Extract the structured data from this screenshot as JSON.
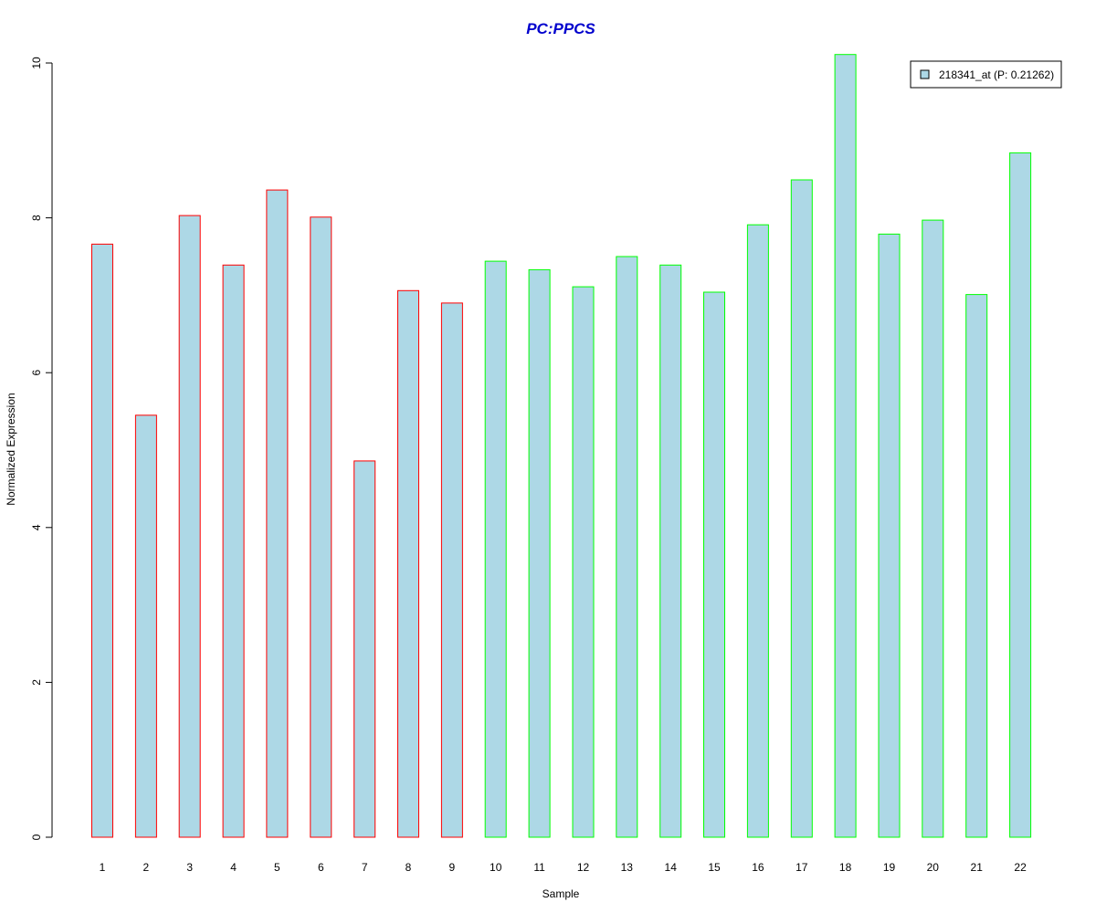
{
  "chart_data": {
    "type": "bar",
    "title": "PC:PPCS",
    "title_color": "#0000cd",
    "xlabel": "Sample",
    "ylabel": "Normalized Expression",
    "ylim": [
      0,
      10
    ],
    "y_ticks": [
      "0",
      "2",
      "4",
      "6",
      "8",
      "10"
    ],
    "categories": [
      "1",
      "2",
      "3",
      "4",
      "5",
      "6",
      "7",
      "8",
      "9",
      "10",
      "11",
      "12",
      "13",
      "14",
      "15",
      "16",
      "17",
      "18",
      "19",
      "20",
      "21",
      "22"
    ],
    "values": [
      7.66,
      5.45,
      8.03,
      7.39,
      8.36,
      8.01,
      4.86,
      7.06,
      6.9,
      7.44,
      7.33,
      7.11,
      7.5,
      7.39,
      7.04,
      7.91,
      8.49,
      10.11,
      7.79,
      7.97,
      7.01,
      8.84
    ],
    "groups": [
      "red",
      "red",
      "red",
      "red",
      "red",
      "red",
      "red",
      "red",
      "red",
      "green",
      "green",
      "green",
      "green",
      "green",
      "green",
      "green",
      "green",
      "green",
      "green",
      "green",
      "green",
      "green"
    ],
    "fill_color": "#add8e6",
    "group_colors": {
      "red": "#ff0000",
      "green": "#00ff00"
    },
    "grid": false,
    "legend": {
      "position": "top-right",
      "label": "218341_at (P: 0.21262)"
    }
  }
}
